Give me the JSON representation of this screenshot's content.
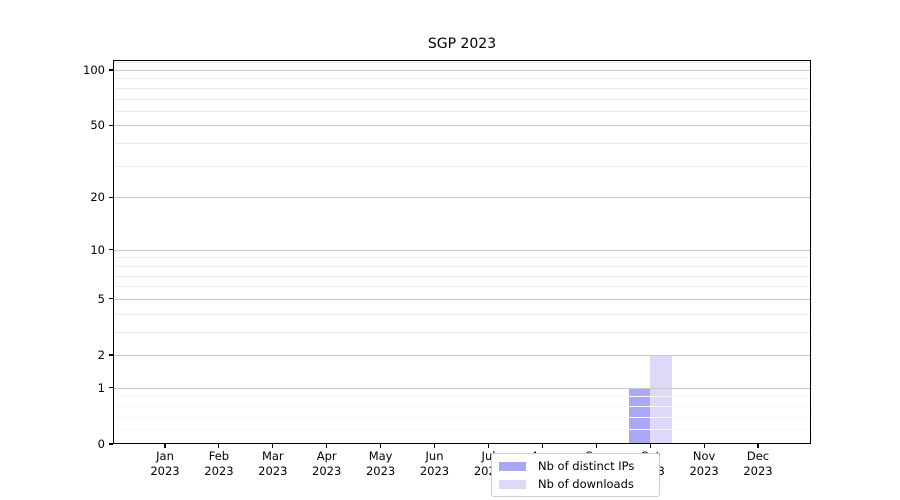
{
  "chart_data": {
    "type": "bar",
    "title": "SGP 2023",
    "categories": [
      "Jan",
      "Feb",
      "Mar",
      "Apr",
      "May",
      "Jun",
      "Jul",
      "Aug",
      "Sep",
      "Oct",
      "Nov",
      "Dec"
    ],
    "category_year": "2023",
    "series": [
      {
        "name": "Nb of distinct IPs",
        "color": "#aaa8f5",
        "values": [
          0,
          0,
          0,
          0,
          0,
          0,
          0,
          0,
          0,
          1,
          0,
          0
        ]
      },
      {
        "name": "Nb of downloads",
        "color": "#dcdaf8",
        "values": [
          0,
          0,
          0,
          0,
          0,
          0,
          0,
          0,
          0,
          2,
          0,
          0
        ]
      }
    ],
    "xlabel": "",
    "ylabel": "",
    "y_axis": {
      "scale": "log1p",
      "major_ticks": [
        0,
        1,
        2,
        5,
        10,
        20,
        50,
        100
      ],
      "minor_gridlines": [
        3,
        4,
        6,
        7,
        8,
        9,
        30,
        40,
        60,
        70,
        80,
        90,
        110
      ],
      "minor_gridlines_faint": [
        0.2,
        0.4,
        0.6,
        0.8
      ],
      "top_value": 113
    },
    "grid": "horizontal",
    "grid_above_bars": true,
    "legend": {
      "position": "lower center",
      "entries": [
        "Nb of distinct IPs",
        "Nb of downloads"
      ]
    },
    "colors": {
      "major_grid": "#c9c9c9",
      "minor_grid": "#ececec",
      "faint_grid": "#f6f6f6",
      "axis": "#000000",
      "legend_border": "#cccccc",
      "background": "#ffffff"
    }
  }
}
